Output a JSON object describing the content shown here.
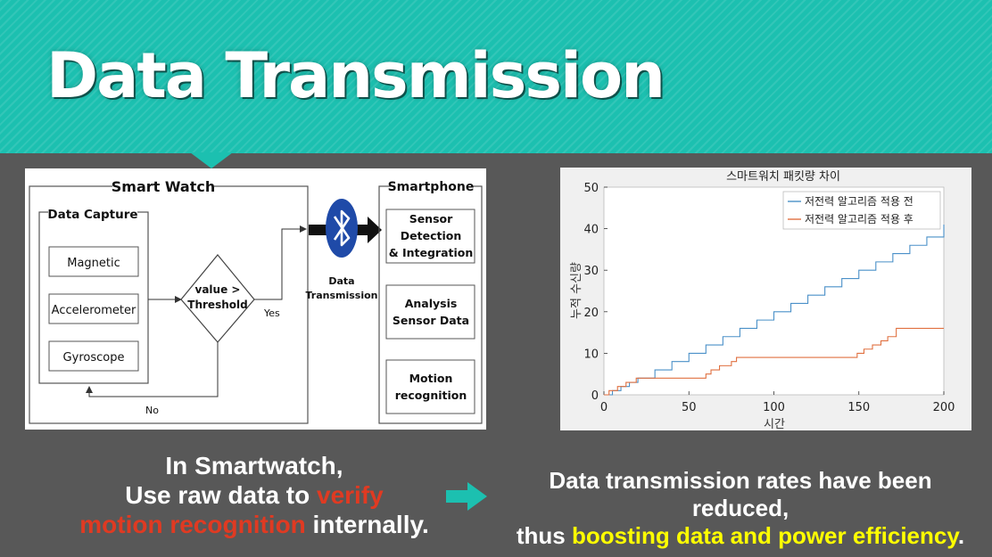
{
  "slide": {
    "title": "Data Transmission"
  },
  "diagram": {
    "smart_watch_label": "Smart Watch",
    "data_capture_label": "Data Capture",
    "sensors": [
      "Magnetic",
      "Accelerometer",
      "Gyroscope"
    ],
    "decision": [
      "value >",
      "Threshold"
    ],
    "yes_label": "Yes",
    "no_label": "No",
    "transmission_label": [
      "Data",
      "Transmission"
    ],
    "smartphone_label": "Smartphone",
    "phone_blocks": [
      [
        "Sensor",
        "Detection",
        "& Integration"
      ],
      [
        "Analysis",
        "Sensor Data"
      ],
      [
        "Motion",
        "recognition"
      ]
    ],
    "icon": "bluetooth-icon"
  },
  "chart_data": {
    "type": "line",
    "title": "스마트워치 패킷량 차이",
    "xlabel": "시간",
    "ylabel": "누적 수신량",
    "xlim": [
      0,
      200
    ],
    "ylim": [
      0,
      50
    ],
    "xticks": [
      0,
      50,
      100,
      150,
      200
    ],
    "yticks": [
      0,
      10,
      20,
      30,
      40,
      50
    ],
    "legend_position": "top-right",
    "series": [
      {
        "name": "저전력 알고리즘 적용 전",
        "color": "#4a90c8",
        "x": [
          0,
          5,
          10,
          15,
          20,
          30,
          40,
          50,
          60,
          70,
          80,
          90,
          100,
          110,
          120,
          130,
          140,
          150,
          160,
          170,
          180,
          190,
          200
        ],
        "values": [
          0,
          1,
          2,
          3,
          4,
          6,
          8,
          10,
          12,
          14,
          16,
          18,
          20,
          22,
          24,
          26,
          28,
          30,
          32,
          34,
          36,
          38,
          41
        ]
      },
      {
        "name": "저전력 알고리즘 적용 후",
        "color": "#e07040",
        "x": [
          0,
          3,
          8,
          13,
          19,
          30,
          40,
          58,
          60,
          63,
          68,
          75,
          78,
          147,
          149,
          153,
          158,
          163,
          167,
          172,
          200
        ],
        "values": [
          0,
          1,
          2,
          3,
          4,
          4,
          4,
          4,
          5,
          6,
          7,
          8,
          9,
          9,
          10,
          11,
          12,
          13,
          14,
          16,
          16
        ]
      }
    ]
  },
  "captions": {
    "left_1": "In Smartwatch,",
    "left_2a": "Use raw data to ",
    "left_2b": "verify",
    "left_3a": "motion recognition",
    "left_3b": " internally.",
    "right_1": "Data transmission rates have been reduced,",
    "right_2a": "thus ",
    "right_2b": "boosting data and power efficiency",
    "right_2c": ".",
    "arrow_icon": "right-arrow-icon",
    "accent_red": "#e03a22",
    "accent_yellow": "#ffff00",
    "accent_teal": "#1cc0b0"
  }
}
